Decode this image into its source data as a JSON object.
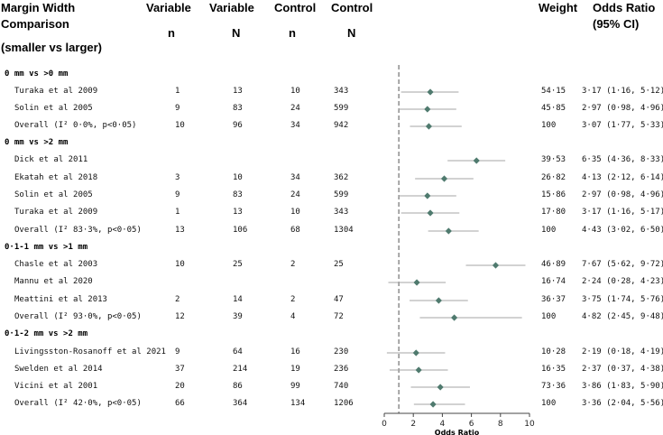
{
  "headers": {
    "study_l1": "Margin Width",
    "study_l2": "Comparison",
    "study_l3": "(smaller vs larger)",
    "var_n_l1": "Variable",
    "var_n_l2": "n",
    "var_N_l1": "Variable",
    "var_N_l2": "N",
    "ctl_n_l1": "Control",
    "ctl_n_l2": "n",
    "ctl_N_l1": "Control",
    "ctl_N_l2": "N",
    "weight": "Weight",
    "or_l1": "Odds Ratio",
    "or_l2": "(95% CI)"
  },
  "rows": [
    {
      "kind": "group",
      "label": "0 mm vs >0 mm"
    },
    {
      "kind": "study",
      "label": "Turaka et al 2009",
      "vn": "1",
      "vN": "13",
      "cn": "10",
      "cN": "343",
      "weight": "54·15",
      "ci": "3·17 (1·16, 5·12)"
    },
    {
      "kind": "study",
      "label": "Solin et al 2005",
      "vn": "9",
      "vN": "83",
      "cn": "24",
      "cN": "599",
      "weight": "45·85",
      "ci": "2·97 (0·98, 4·96)"
    },
    {
      "kind": "overall",
      "label": "Overall (I² 0·0%, p<0·05)",
      "vn": "10",
      "vN": "96",
      "cn": "34",
      "cN": "942",
      "weight": "100",
      "ci": "3·07 (1·77, 5·33)"
    },
    {
      "kind": "group",
      "label": "0 mm vs >2 mm"
    },
    {
      "kind": "study",
      "label": "Dick et al 2011",
      "vn": "",
      "vN": "",
      "cn": "",
      "cN": "",
      "weight": "39·53",
      "ci": "6·35 (4·36, 8·33)"
    },
    {
      "kind": "study",
      "label": "Ekatah et al 2018",
      "vn": "3",
      "vN": "10",
      "cn": "34",
      "cN": "362",
      "weight": "26·82",
      "ci": "4·13 (2·12, 6·14)"
    },
    {
      "kind": "study",
      "label": "Solin et al 2005",
      "vn": "9",
      "vN": "83",
      "cn": "24",
      "cN": "599",
      "weight": "15·86",
      "ci": "2·97 (0·98, 4·96)"
    },
    {
      "kind": "study",
      "label": "Turaka et al 2009",
      "vn": "1",
      "vN": "13",
      "cn": "10",
      "cN": "343",
      "weight": "17·80",
      "ci": "3·17 (1·16, 5·17)"
    },
    {
      "kind": "overall",
      "label": "Overall (I² 83·3%, p<0·05)",
      "vn": "13",
      "vN": "106",
      "cn": "68",
      "cN": "1304",
      "weight": "100",
      "ci": "4·43 (3·02, 6·50)"
    },
    {
      "kind": "group",
      "label": "0·1-1 mm vs >1 mm"
    },
    {
      "kind": "study",
      "label": "Chasle et al 2003",
      "vn": "10",
      "vN": "25",
      "cn": "2",
      "cN": "25",
      "weight": "46·89",
      "ci": "7·67 (5·62, 9·72)"
    },
    {
      "kind": "study",
      "label": "Mannu et al 2020",
      "vn": "",
      "vN": "",
      "cn": "",
      "cN": "",
      "weight": "16·74",
      "ci": "2·24 (0·28, 4·23)"
    },
    {
      "kind": "study",
      "label": "Meattini et al 2013",
      "vn": "2",
      "vN": "14",
      "cn": "2",
      "cN": "47",
      "weight": "36·37",
      "ci": "3·75 (1·74, 5·76)"
    },
    {
      "kind": "overall",
      "label": "Overall (I² 93·0%, p<0·05)",
      "vn": "12",
      "vN": "39",
      "cn": "4",
      "cN": "72",
      "weight": "100",
      "ci": "4·82 (2·45, 9·48)"
    },
    {
      "kind": "group",
      "label": "0·1-2 mm vs >2 mm"
    },
    {
      "kind": "study",
      "label": "Livingsston-Rosanoff et al 2021",
      "vn": "9",
      "vN": "64",
      "cn": "16",
      "cN": "230",
      "weight": "10·28",
      "ci": "2·19 (0·18, 4·19)"
    },
    {
      "kind": "study",
      "label": "Swelden et al 2014",
      "vn": "37",
      "vN": "214",
      "cn": "19",
      "cN": "236",
      "weight": "16·35",
      "ci": "2·37 (0·37, 4·38)"
    },
    {
      "kind": "study",
      "label": "Vicini et al 2001",
      "vn": "20",
      "vN": "86",
      "cn": "99",
      "cN": "740",
      "weight": "73·36",
      "ci": "3·86 (1·83, 5·90)"
    },
    {
      "kind": "overall",
      "label": "Overall (I² 42·0%, p<0·05)",
      "vn": "66",
      "vN": "364",
      "cn": "134",
      "cN": "1206",
      "weight": "100",
      "ci": "3·36 (2·04, 5·56)"
    }
  ],
  "chart_data": {
    "type": "forest",
    "xlabel": "Odds Ratio",
    "xlim": [
      0,
      10
    ],
    "xticks": [
      0,
      2,
      4,
      6,
      8,
      10
    ],
    "reference_line": 1,
    "colors": {
      "marker": "#4f7a6e",
      "ci_line": "#a6a6a6",
      "ref_line": "#555555",
      "axis": "#444444"
    },
    "points": [
      {
        "row": 1,
        "or": 3.17,
        "lo": 1.16,
        "hi": 5.12
      },
      {
        "row": 2,
        "or": 2.97,
        "lo": 0.98,
        "hi": 4.96
      },
      {
        "row": 3,
        "or": 3.07,
        "lo": 1.77,
        "hi": 5.33
      },
      {
        "row": 5,
        "or": 6.35,
        "lo": 4.36,
        "hi": 8.33
      },
      {
        "row": 6,
        "or": 4.13,
        "lo": 2.12,
        "hi": 6.14
      },
      {
        "row": 7,
        "or": 2.97,
        "lo": 0.98,
        "hi": 4.96
      },
      {
        "row": 8,
        "or": 3.17,
        "lo": 1.16,
        "hi": 5.17
      },
      {
        "row": 9,
        "or": 4.43,
        "lo": 3.02,
        "hi": 6.5
      },
      {
        "row": 11,
        "or": 7.67,
        "lo": 5.62,
        "hi": 9.72
      },
      {
        "row": 12,
        "or": 2.24,
        "lo": 0.28,
        "hi": 4.23
      },
      {
        "row": 13,
        "or": 3.75,
        "lo": 1.74,
        "hi": 5.76
      },
      {
        "row": 14,
        "or": 4.82,
        "lo": 2.45,
        "hi": 9.48
      },
      {
        "row": 16,
        "or": 2.19,
        "lo": 0.18,
        "hi": 4.19
      },
      {
        "row": 17,
        "or": 2.37,
        "lo": 0.37,
        "hi": 4.38
      },
      {
        "row": 18,
        "or": 3.86,
        "lo": 1.83,
        "hi": 5.9
      },
      {
        "row": 19,
        "or": 3.36,
        "lo": 2.04,
        "hi": 5.56
      }
    ]
  }
}
